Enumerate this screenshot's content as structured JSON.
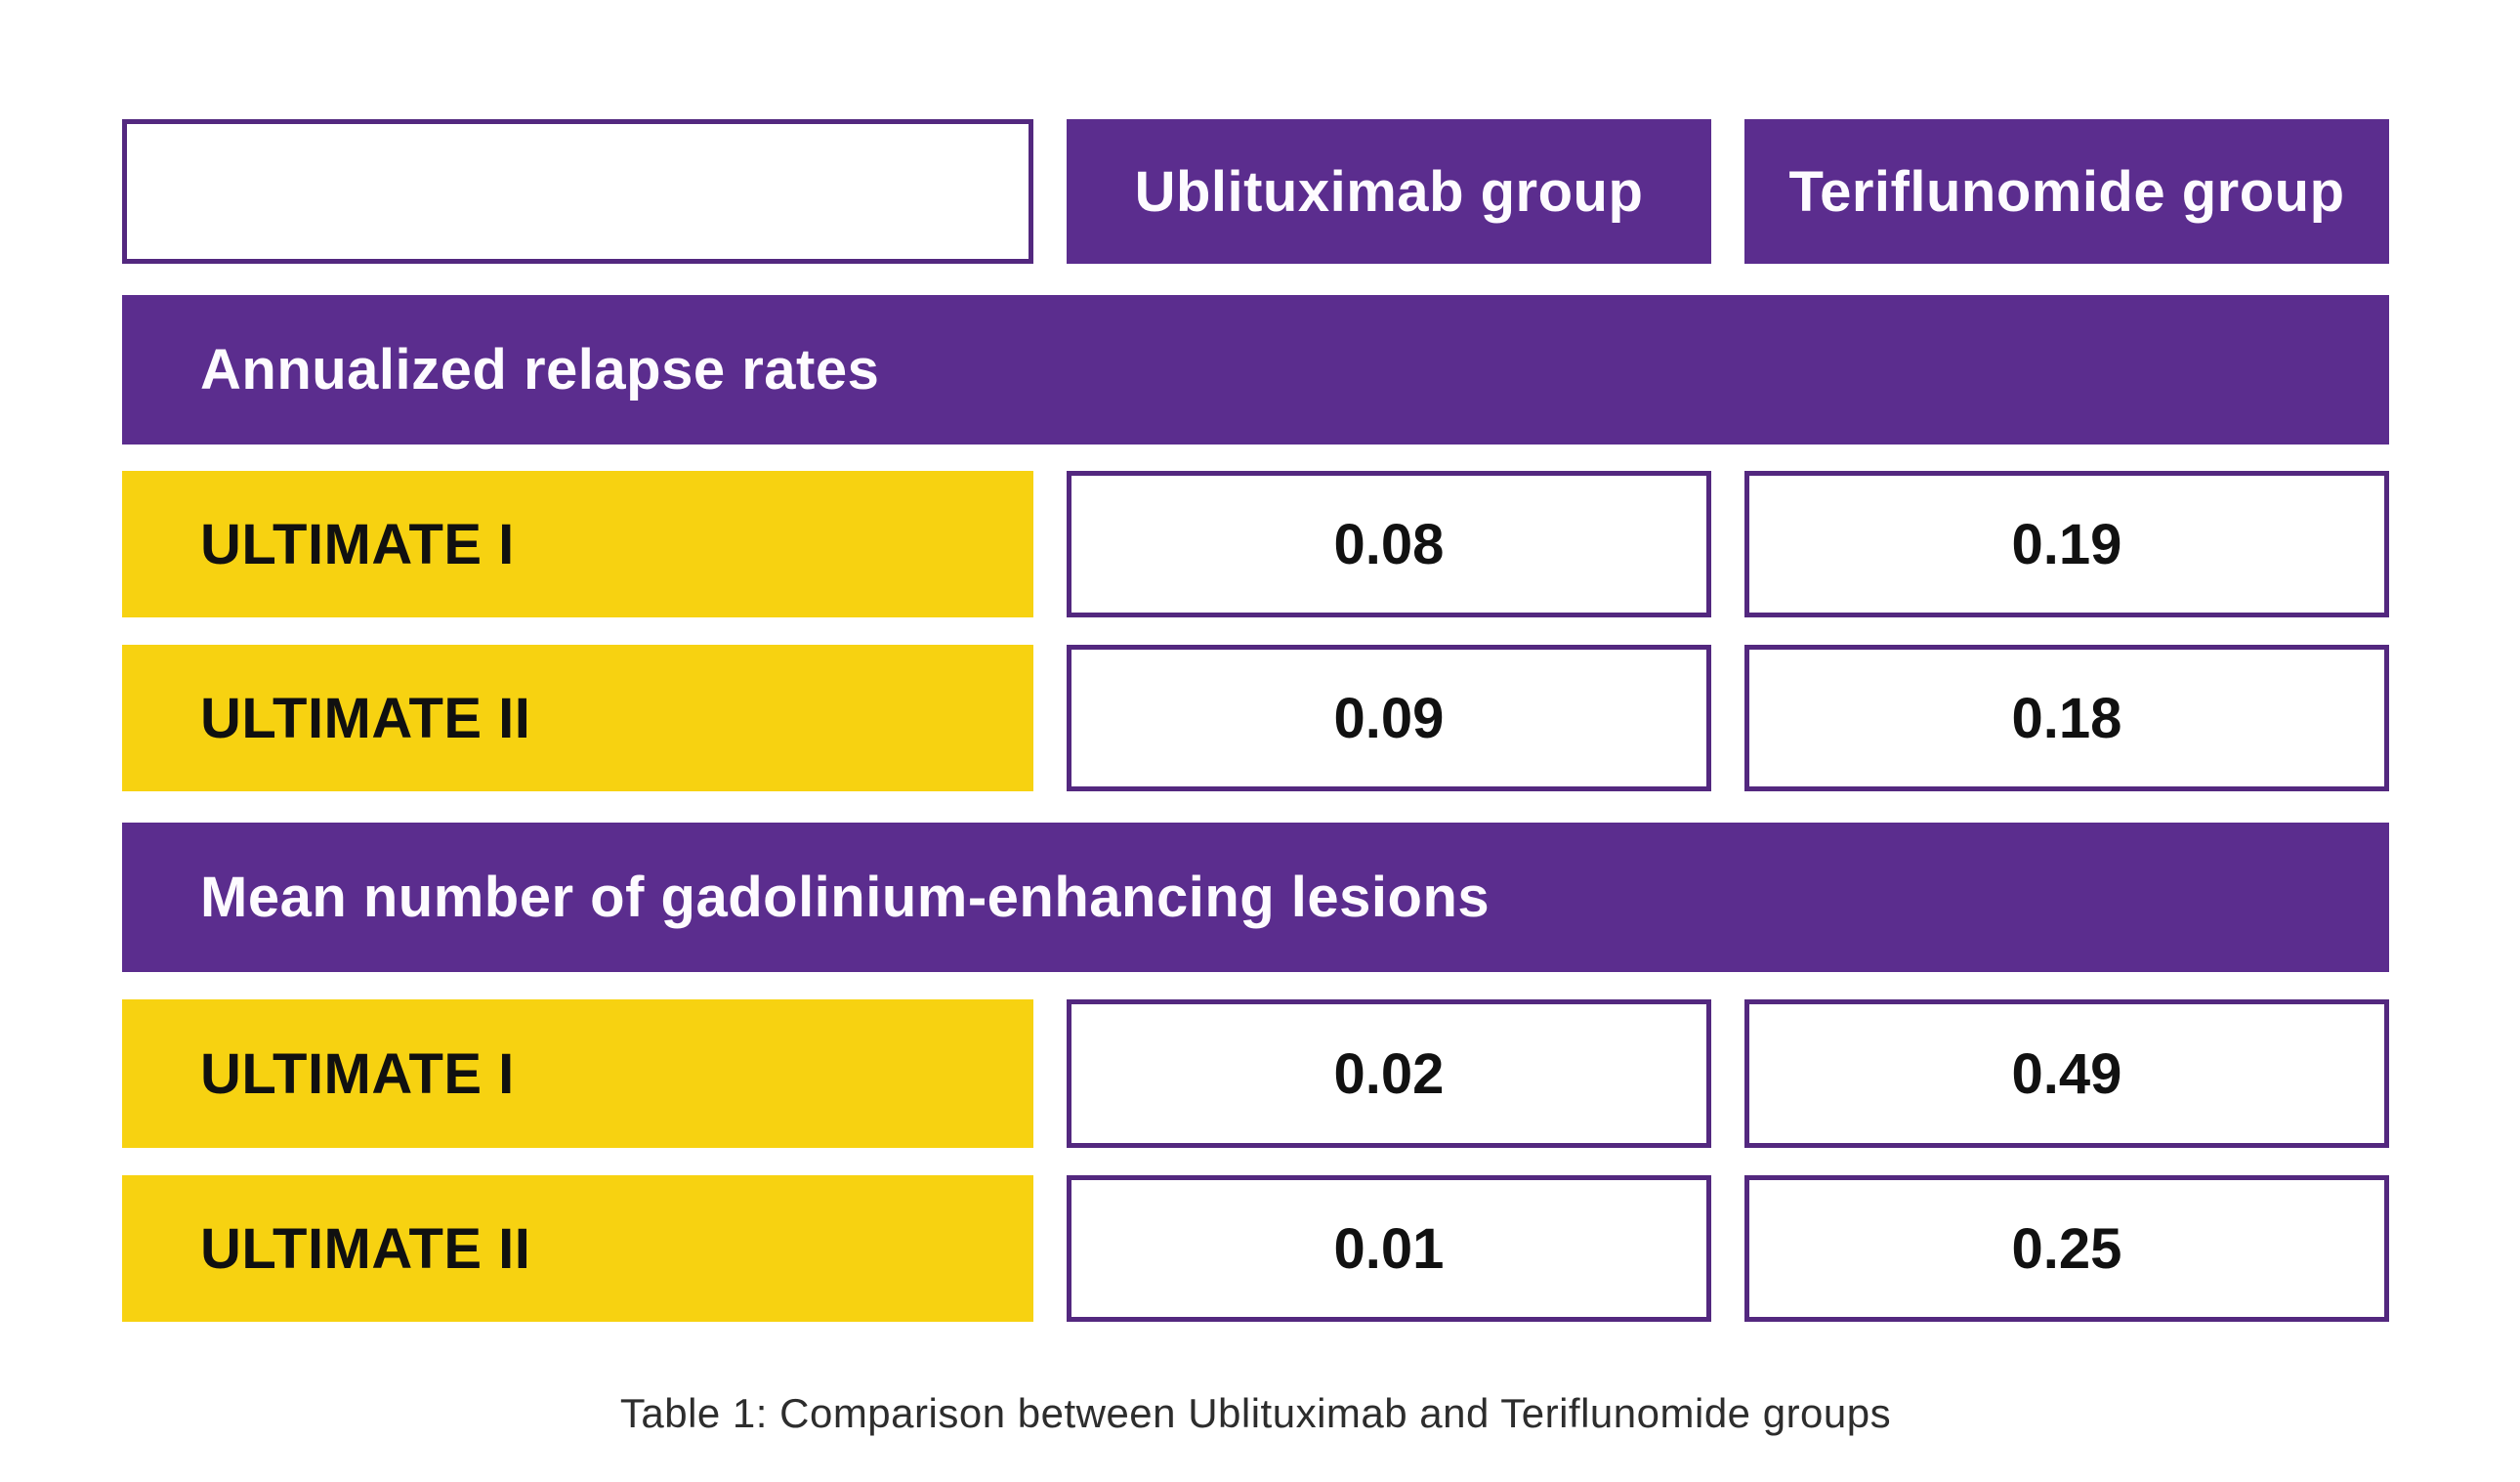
{
  "table": {
    "header": {
      "corner_label": "",
      "col1_label": "Ublituximab group",
      "col2_label": "Teriflunomide group"
    },
    "sections": [
      {
        "title": "Annualized relapse rates",
        "rows": [
          {
            "label": "ULTIMATE I",
            "val1": "0.08",
            "val2": "0.19"
          },
          {
            "label": "ULTIMATE II",
            "val1": "0.09",
            "val2": "0.18"
          }
        ]
      },
      {
        "title": "Mean number of gadolinium-enhancing lesions",
        "rows": [
          {
            "label": "ULTIMATE I",
            "val1": "0.02",
            "val2": "0.49"
          },
          {
            "label": "ULTIMATE II",
            "val1": "0.01",
            "val2": "0.25"
          }
        ]
      }
    ],
    "caption": "Table 1: Comparison between Ublituximab and Teriflunomide groups"
  },
  "colors": {
    "purple": "#5b2d8e",
    "purple_border": "#53287f",
    "yellow": "#f7d211",
    "text_dark": "#111111",
    "caption_text": "#2d2d2d",
    "background": "#ffffff"
  },
  "chart_data": {
    "type": "table",
    "title": "Table 1: Comparison between Ublituximab and Teriflunomide groups",
    "columns": [
      "",
      "Ublituximab group",
      "Teriflunomide group"
    ],
    "sections": [
      {
        "header": "Annualized relapse rates",
        "rows": [
          [
            "ULTIMATE I",
            0.08,
            0.19
          ],
          [
            "ULTIMATE II",
            0.09,
            0.18
          ]
        ]
      },
      {
        "header": "Mean number of gadolinium-enhancing lesions",
        "rows": [
          [
            "ULTIMATE I",
            0.02,
            0.49
          ],
          [
            "ULTIMATE II",
            0.01,
            0.25
          ]
        ]
      }
    ],
    "legend_position": "none",
    "grid": false
  }
}
